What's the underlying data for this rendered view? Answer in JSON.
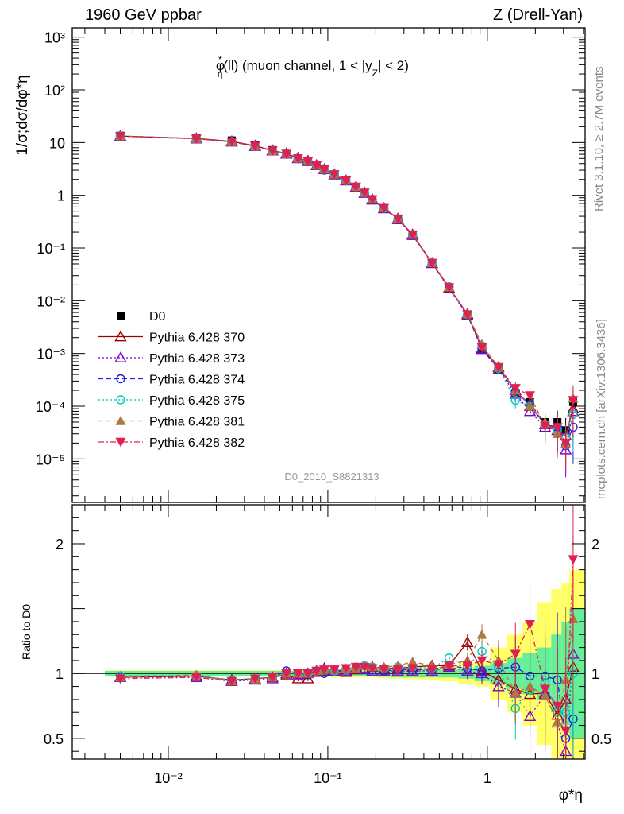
{
  "header": {
    "left": "1960 GeV ppbar",
    "right": "Z (Drell-Yan)"
  },
  "side_labels": {
    "rivet": "Rivet 3.1.10, ≥ 2.7M events",
    "mcplots": "mcplots.cern.ch [arXiv:1306.3436]"
  },
  "chart_data": [
    {
      "type": "scatter",
      "panel": "main",
      "title": "φ*η(ll) (muon channel, 1 < |yZ| < 2)",
      "title_parts": {
        "phi": "φ",
        "star": "*",
        "eta": "η",
        "rest1": "(ll) (muon channel, 1 < |y",
        "Z": "Z",
        "rest2": "| < 2)"
      },
      "watermark": "D0_2010_S8821313",
      "ylabel": "1/σ;dσ/dφ*η",
      "x_scale": "log",
      "y_scale": "log",
      "xlim": [
        0.0025,
        4.1
      ],
      "ylim": [
        1.5e-06,
        1500
      ],
      "ytick_labels": [
        "10⁻⁵",
        "10⁻⁴",
        "10⁻³",
        "10⁻²",
        "10⁻¹",
        "1",
        "10",
        "10²",
        "10³"
      ],
      "ytick_values": [
        1e-05,
        0.0001,
        0.001,
        0.01,
        0.1,
        1,
        10,
        100,
        1000
      ],
      "legend_position": "middle-left",
      "x": [
        0.005,
        0.015,
        0.025,
        0.035,
        0.045,
        0.055,
        0.065,
        0.075,
        0.085,
        0.095,
        0.11,
        0.13,
        0.15,
        0.17,
        0.19,
        0.225,
        0.275,
        0.34,
        0.45,
        0.575,
        0.75,
        0.925,
        1.175,
        1.5,
        1.85,
        2.3,
        2.75,
        3.1,
        3.45
      ],
      "series": [
        {
          "name": "D0",
          "color": "#000000",
          "marker": "square",
          "values": [
            13.5,
            12,
            11,
            8.9,
            7.2,
            6.1,
            5.0,
            4.3,
            3.6,
            3.0,
            2.4,
            1.85,
            1.4,
            1.08,
            0.8,
            0.55,
            0.34,
            0.17,
            0.05,
            0.017,
            0.0052,
            0.0012,
            0.0005,
            0.00018,
            0.00012,
            5e-05,
            5e-05,
            3.5e-05,
            0.00012
          ]
        },
        {
          "name": "Pythia 6.428 370",
          "color": "#a00000",
          "marker": "triangle-open",
          "line": "solid",
          "values": [
            13.3,
            12,
            10.5,
            8.7,
            7.1,
            6.2,
            5.1,
            4.5,
            3.7,
            3.1,
            2.5,
            1.9,
            1.45,
            1.12,
            0.84,
            0.57,
            0.36,
            0.18,
            0.052,
            0.0175,
            0.0056,
            0.00125,
            0.00055,
            0.0002,
            0.0001,
            4.5e-05,
            3.5e-05,
            2.8e-05,
            9e-05
          ]
        },
        {
          "name": "Pythia 6.428 373",
          "color": "#8000d0",
          "marker": "triangle-open",
          "line": "dotted",
          "values": [
            13.2,
            11.8,
            10.3,
            8.5,
            7.0,
            6.1,
            5.0,
            4.4,
            3.7,
            3.1,
            2.45,
            1.9,
            1.45,
            1.1,
            0.82,
            0.56,
            0.35,
            0.175,
            0.051,
            0.017,
            0.0053,
            0.0012,
            0.0005,
            0.00017,
            8e-05,
            4e-05,
            3.5e-05,
            1.5e-05,
            8e-05
          ]
        },
        {
          "name": "Pythia 6.428 374",
          "color": "#2020e0",
          "marker": "circle-open",
          "line": "dashed",
          "values": [
            13.3,
            11.9,
            10.4,
            8.6,
            7.0,
            6.2,
            5.0,
            4.4,
            3.7,
            3.0,
            2.45,
            1.9,
            1.45,
            1.1,
            0.83,
            0.56,
            0.35,
            0.175,
            0.052,
            0.018,
            0.0054,
            0.0012,
            0.00052,
            0.00019,
            0.00011,
            4.5e-05,
            4e-05,
            1.8e-05,
            4e-05
          ]
        },
        {
          "name": "Pythia 6.428 375",
          "color": "#00c8c0",
          "marker": "circle-open",
          "line": "dotted",
          "values": [
            13.3,
            11.9,
            10.4,
            8.6,
            7.0,
            6.2,
            5.0,
            4.4,
            3.7,
            3.1,
            2.5,
            1.9,
            1.45,
            1.12,
            0.84,
            0.57,
            0.36,
            0.18,
            0.053,
            0.0185,
            0.0055,
            0.0014,
            0.00052,
            0.00013,
            0.0001,
            4.5e-05,
            3.5e-05,
            2.5e-05,
            7e-05
          ]
        },
        {
          "name": "Pythia 6.428 381",
          "color": "#b07840",
          "marker": "triangle-filled",
          "line": "dashed",
          "values": [
            13.2,
            11.8,
            10.3,
            8.5,
            7.0,
            6.1,
            5.0,
            4.4,
            3.7,
            3.1,
            2.5,
            1.92,
            1.45,
            1.12,
            0.84,
            0.58,
            0.36,
            0.18,
            0.052,
            0.018,
            0.0056,
            0.0015,
            0.00055,
            0.0002,
            0.0001,
            5e-05,
            3e-05,
            2e-05,
            0.00014
          ]
        },
        {
          "name": "Pythia 6.428 382",
          "color": "#e02050",
          "marker": "triangle-down-filled",
          "line": "dashdot",
          "values": [
            13.2,
            11.8,
            10.4,
            8.6,
            7.0,
            6.1,
            5.0,
            4.4,
            3.7,
            3.1,
            2.5,
            1.9,
            1.45,
            1.12,
            0.84,
            0.57,
            0.36,
            0.18,
            0.052,
            0.018,
            0.0055,
            0.0013,
            0.00055,
            0.00022,
            0.00016,
            4.2e-05,
            4e-05,
            2e-05,
            0.00013
          ]
        }
      ]
    },
    {
      "type": "scatter",
      "panel": "ratio",
      "ylabel": "Ratio to D0",
      "xlabel": "φ*η",
      "x_scale": "log",
      "xlim": [
        0.0025,
        4.1
      ],
      "ylim": [
        0.34,
        2.3
      ],
      "xtick_labels": [
        "10⁻²",
        "10⁻¹",
        "1"
      ],
      "xtick_values": [
        0.01,
        0.1,
        1
      ],
      "ytick_labels": [
        "0.5",
        "1",
        "2"
      ],
      "ytick_values": [
        0.5,
        1,
        2
      ],
      "reference_line": 1,
      "band_colors": {
        "stat": "#66ee99",
        "total": "#ffff66"
      },
      "band_stat": [
        0.02,
        0.02,
        0.02,
        0.02,
        0.02,
        0.02,
        0.02,
        0.02,
        0.02,
        0.02,
        0.02,
        0.02,
        0.02,
        0.02,
        0.02,
        0.025,
        0.03,
        0.03,
        0.03,
        0.03,
        0.04,
        0.06,
        0.08,
        0.12,
        0.16,
        0.2,
        0.3,
        0.4,
        0.5
      ],
      "band_total": [
        0.025,
        0.025,
        0.025,
        0.025,
        0.025,
        0.025,
        0.025,
        0.025,
        0.025,
        0.025,
        0.03,
        0.03,
        0.03,
        0.03,
        0.03,
        0.035,
        0.04,
        0.045,
        0.05,
        0.06,
        0.08,
        0.1,
        0.2,
        0.3,
        0.4,
        0.55,
        0.65,
        0.7,
        0.8
      ],
      "series": [
        {
          "name": "Pythia 6.428 370",
          "values": [
            0.97,
            0.98,
            0.95,
            0.96,
            0.97,
            0.99,
            0.96,
            0.96,
            1.01,
            1.02,
            1.02,
            1.01,
            1.03,
            1.04,
            1.05,
            1.04,
            1.04,
            1.05,
            1.06,
            1.06,
            1.24,
            1.02,
            0.95,
            0.88,
            0.84,
            0.85,
            0.68,
            0.8,
            1.05
          ]
        },
        {
          "name": "Pythia 6.428 373",
          "values": [
            0.97,
            0.97,
            0.94,
            0.95,
            0.96,
            1.0,
            0.99,
            1.0,
            1.02,
            1.04,
            1.02,
            1.02,
            1.04,
            1.03,
            1.02,
            1.02,
            1.02,
            1.02,
            1.02,
            1.05,
            1.02,
            1.0,
            0.9,
            0.85,
            0.67,
            0.84,
            0.62,
            0.4,
            1.15
          ]
        },
        {
          "name": "Pythia 6.428 374",
          "values": [
            0.98,
            0.98,
            0.95,
            0.96,
            0.97,
            1.02,
            1.0,
            0.99,
            1.02,
            1.0,
            1.02,
            1.03,
            1.04,
            1.03,
            1.03,
            1.02,
            1.03,
            1.03,
            1.03,
            1.06,
            1.04,
            1.02,
            1.04,
            1.05,
            0.98,
            0.98,
            0.95,
            0.5,
            0.65
          ]
        },
        {
          "name": "Pythia 6.428 375",
          "values": [
            0.98,
            0.98,
            0.95,
            0.96,
            0.97,
            1.0,
            1.0,
            1.0,
            1.02,
            1.03,
            1.02,
            1.03,
            1.05,
            1.06,
            1.05,
            1.04,
            1.05,
            1.05,
            1.04,
            1.12,
            1.06,
            1.17,
            1.05,
            0.73,
            0.87,
            0.93,
            0.7,
            0.7,
            1.0
          ]
        },
        {
          "name": "Pythia 6.428 381",
          "values": [
            0.97,
            0.99,
            0.94,
            0.96,
            0.97,
            1.0,
            1.0,
            1.0,
            1.02,
            1.03,
            1.03,
            1.04,
            1.04,
            1.06,
            1.05,
            1.05,
            1.06,
            1.09,
            1.06,
            1.07,
            1.1,
            1.3,
            1.1,
            0.85,
            0.9,
            0.83,
            0.63,
            0.95,
            1.42
          ]
        },
        {
          "name": "Pythia 6.428 382",
          "values": [
            0.96,
            0.97,
            0.94,
            0.96,
            0.97,
            1.0,
            1.0,
            1.0,
            1.02,
            1.03,
            1.03,
            1.04,
            1.05,
            1.05,
            1.04,
            1.03,
            1.03,
            1.04,
            1.03,
            1.06,
            1.06,
            1.1,
            1.07,
            1.15,
            1.38,
            0.88,
            0.75,
            0.56,
            1.88
          ]
        }
      ]
    }
  ]
}
